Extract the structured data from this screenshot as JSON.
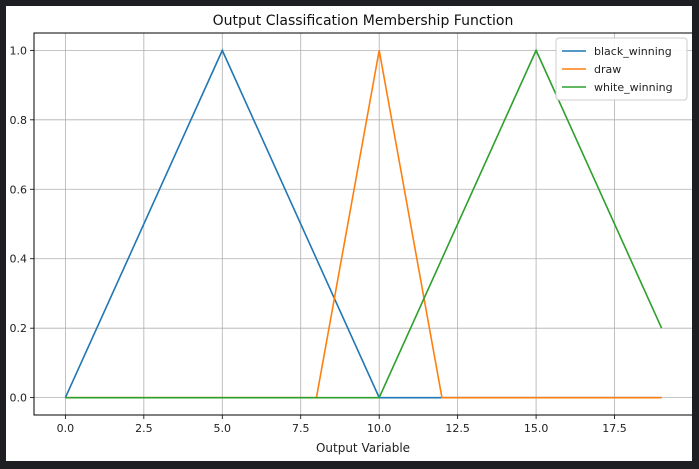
{
  "chart_data": {
    "type": "line",
    "title": "Output Classification Membership Function",
    "xlabel": "Output Variable",
    "ylabel": "",
    "xlim": [
      -1.0,
      20.0
    ],
    "ylim": [
      -0.05,
      1.05
    ],
    "xticks": [
      0.0,
      2.5,
      5.0,
      7.5,
      10.0,
      12.5,
      15.0,
      17.5
    ],
    "xtick_labels": [
      "0.0",
      "2.5",
      "5.0",
      "7.5",
      "10.0",
      "12.5",
      "15.0",
      "17.5"
    ],
    "yticks": [
      0.0,
      0.2,
      0.4,
      0.6,
      0.8,
      1.0
    ],
    "ytick_labels": [
      "0.0",
      "0.2",
      "0.4",
      "0.6",
      "0.8",
      "1.0"
    ],
    "grid": true,
    "legend_position": "top-right",
    "series": [
      {
        "name": "black_winning",
        "color": "#1f77b4",
        "x": [
          0,
          5,
          10,
          19
        ],
        "y": [
          0,
          1,
          0,
          0
        ]
      },
      {
        "name": "draw",
        "color": "#ff7f0e",
        "x": [
          0,
          8,
          10,
          12,
          19
        ],
        "y": [
          0,
          0,
          1,
          0,
          0
        ]
      },
      {
        "name": "white_winning",
        "color": "#2ca02c",
        "x": [
          0,
          10,
          15,
          19
        ],
        "y": [
          0,
          0,
          1,
          0.2
        ]
      }
    ]
  }
}
